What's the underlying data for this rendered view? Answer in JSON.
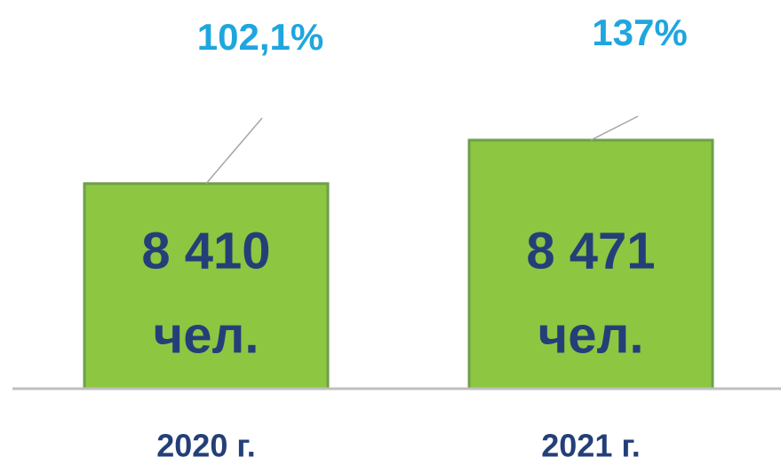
{
  "chart_data": {
    "type": "bar",
    "categories": [
      "2020 г.",
      "2021 г."
    ],
    "values": [
      8410,
      8471
    ],
    "value_labels": [
      "8 410",
      "8 471"
    ],
    "unit_label": "чел.",
    "annotations": [
      "102,1%",
      "137%"
    ],
    "color": "#8dc641",
    "ylim": [
      8122,
      8593
    ]
  }
}
